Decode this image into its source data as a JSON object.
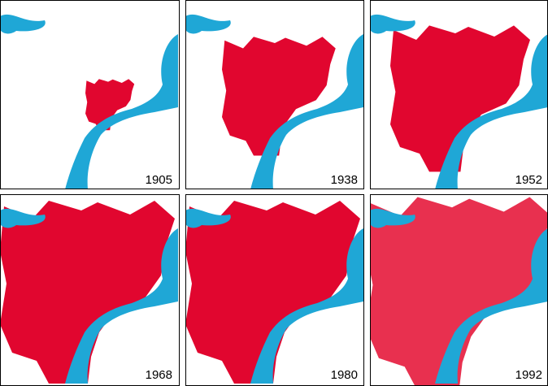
{
  "panels": [
    {
      "year": "1905"
    },
    {
      "year": "1938"
    },
    {
      "year": "1952"
    },
    {
      "year": "1968"
    },
    {
      "year": "1980"
    },
    {
      "year": "1992"
    }
  ]
}
